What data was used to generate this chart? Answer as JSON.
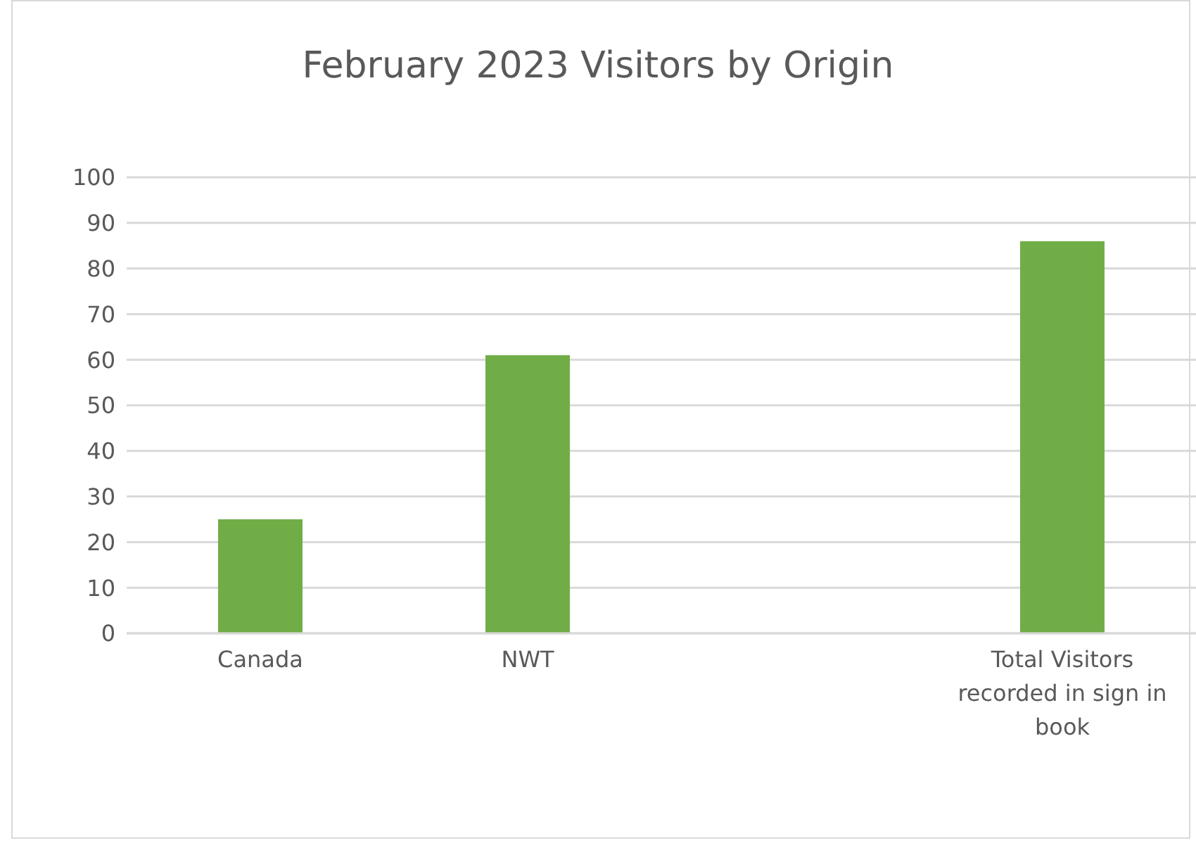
{
  "chart_data": {
    "type": "bar",
    "title": "February 2023 Visitors by Origin",
    "categories": [
      "Canada",
      "NWT",
      null,
      "Total Visitors recorded in sign in book"
    ],
    "values": [
      25,
      61,
      null,
      86
    ],
    "color": "#70ad47",
    "ylim": [
      0,
      100
    ],
    "yticks": [
      0,
      10,
      20,
      30,
      40,
      50,
      60,
      70,
      80,
      90,
      100
    ],
    "grid": "y"
  }
}
